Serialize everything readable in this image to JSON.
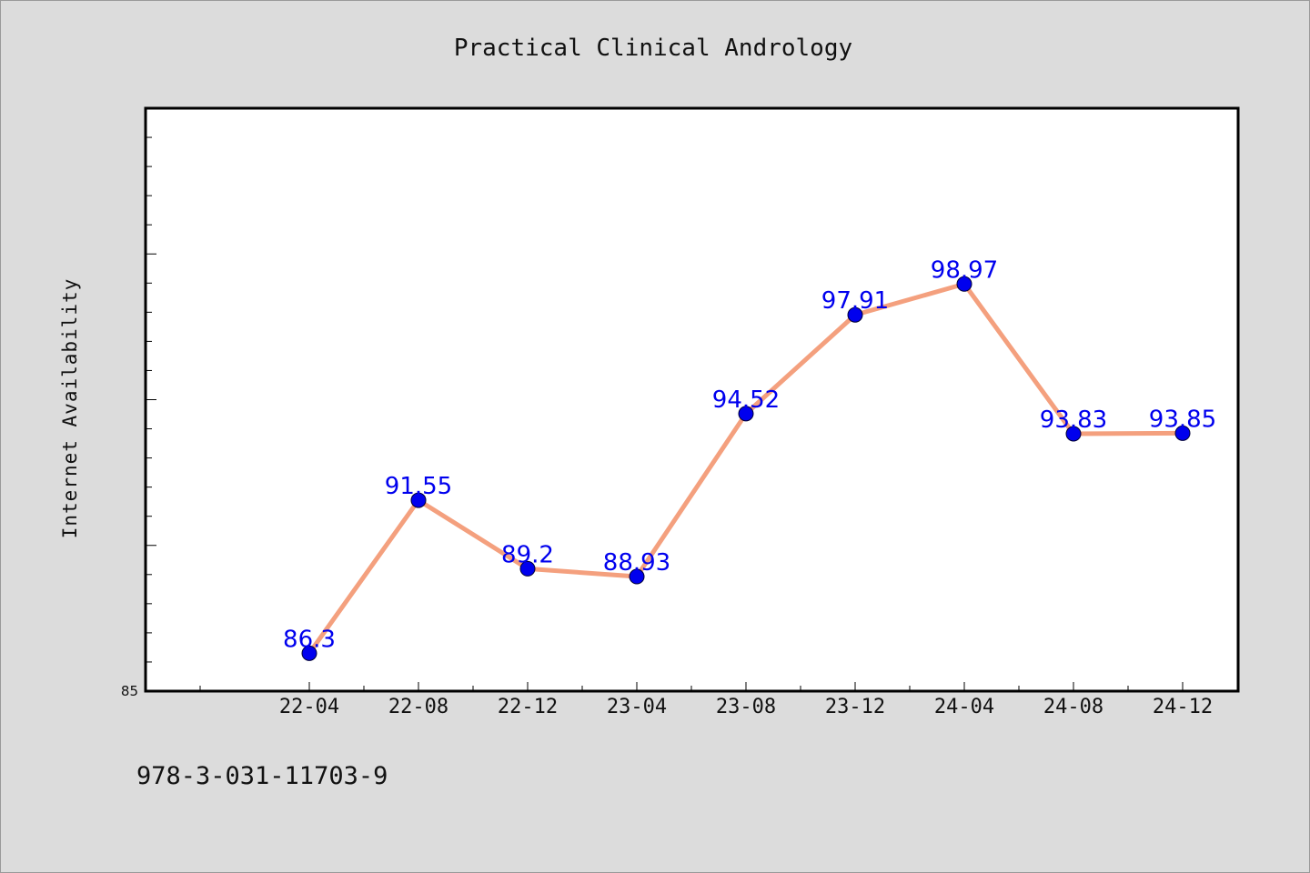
{
  "chart_data": {
    "type": "line",
    "title": "Practical Clinical Andrology",
    "ylabel": "Internet Availability",
    "xlabel": "",
    "categories": [
      "22-04",
      "22-08",
      "22-12",
      "23-04",
      "23-08",
      "23-12",
      "24-04",
      "24-08",
      "24-12"
    ],
    "series": [
      {
        "values": [
          86.3,
          91.55,
          89.2,
          88.93,
          94.52,
          97.91,
          98.97,
          93.83,
          93.85
        ]
      }
    ],
    "data_labels": [
      "86.3",
      "91.55",
      "89.2",
      "88.93",
      "94.52",
      "97.91",
      "98.97",
      "93.83",
      "93.85"
    ],
    "ylim": [
      85,
      105
    ],
    "y_tick_labels": [
      "85"
    ],
    "grid": false,
    "line_color": "#f4a07e",
    "marker_color": "#0000ee",
    "label_color": "#0000ee",
    "background_color": "#dcdcdc",
    "plot_background": "#ffffff"
  },
  "footer_text": "978-3-031-11703-9"
}
